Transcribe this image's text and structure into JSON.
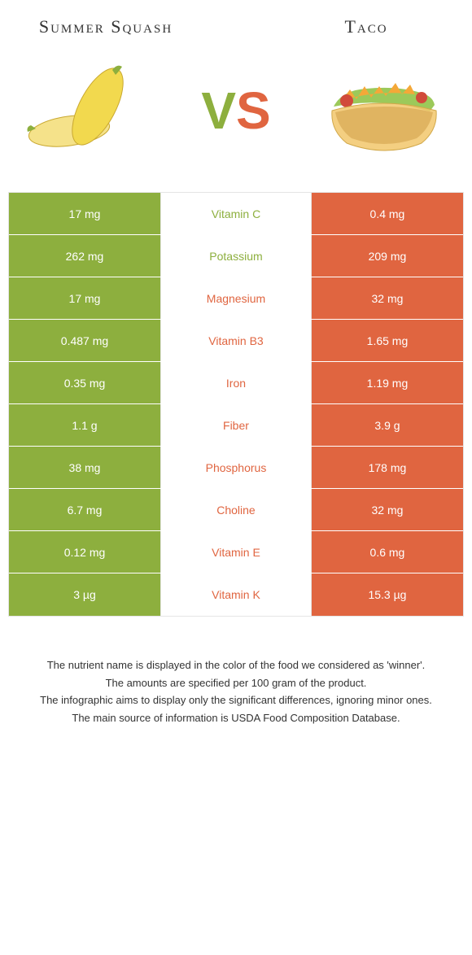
{
  "header": {
    "left_title": "Summer Squash",
    "right_title": "Taco",
    "vs_v": "V",
    "vs_s": "S"
  },
  "colors": {
    "left": "#8daf3e",
    "right": "#e06540"
  },
  "rows": [
    {
      "left": "17 mg",
      "name": "Vitamin C",
      "right": "0.4 mg",
      "winner": "left"
    },
    {
      "left": "262 mg",
      "name": "Potassium",
      "right": "209 mg",
      "winner": "left"
    },
    {
      "left": "17 mg",
      "name": "Magnesium",
      "right": "32 mg",
      "winner": "right"
    },
    {
      "left": "0.487 mg",
      "name": "Vitamin B3",
      "right": "1.65 mg",
      "winner": "right"
    },
    {
      "left": "0.35 mg",
      "name": "Iron",
      "right": "1.19 mg",
      "winner": "right"
    },
    {
      "left": "1.1 g",
      "name": "Fiber",
      "right": "3.9 g",
      "winner": "right"
    },
    {
      "left": "38 mg",
      "name": "Phosphorus",
      "right": "178 mg",
      "winner": "right"
    },
    {
      "left": "6.7 mg",
      "name": "Choline",
      "right": "32 mg",
      "winner": "right"
    },
    {
      "left": "0.12 mg",
      "name": "Vitamin E",
      "right": "0.6 mg",
      "winner": "right"
    },
    {
      "left": "3 µg",
      "name": "Vitamin K",
      "right": "15.3 µg",
      "winner": "right"
    }
  ],
  "footnotes": [
    "The nutrient name is displayed in the color of the food we considered as 'winner'.",
    "The amounts are specified per 100 gram of the product.",
    "The infographic aims to display only the significant differences, ignoring minor ones.",
    "The main source of information is USDA Food Composition Database."
  ]
}
